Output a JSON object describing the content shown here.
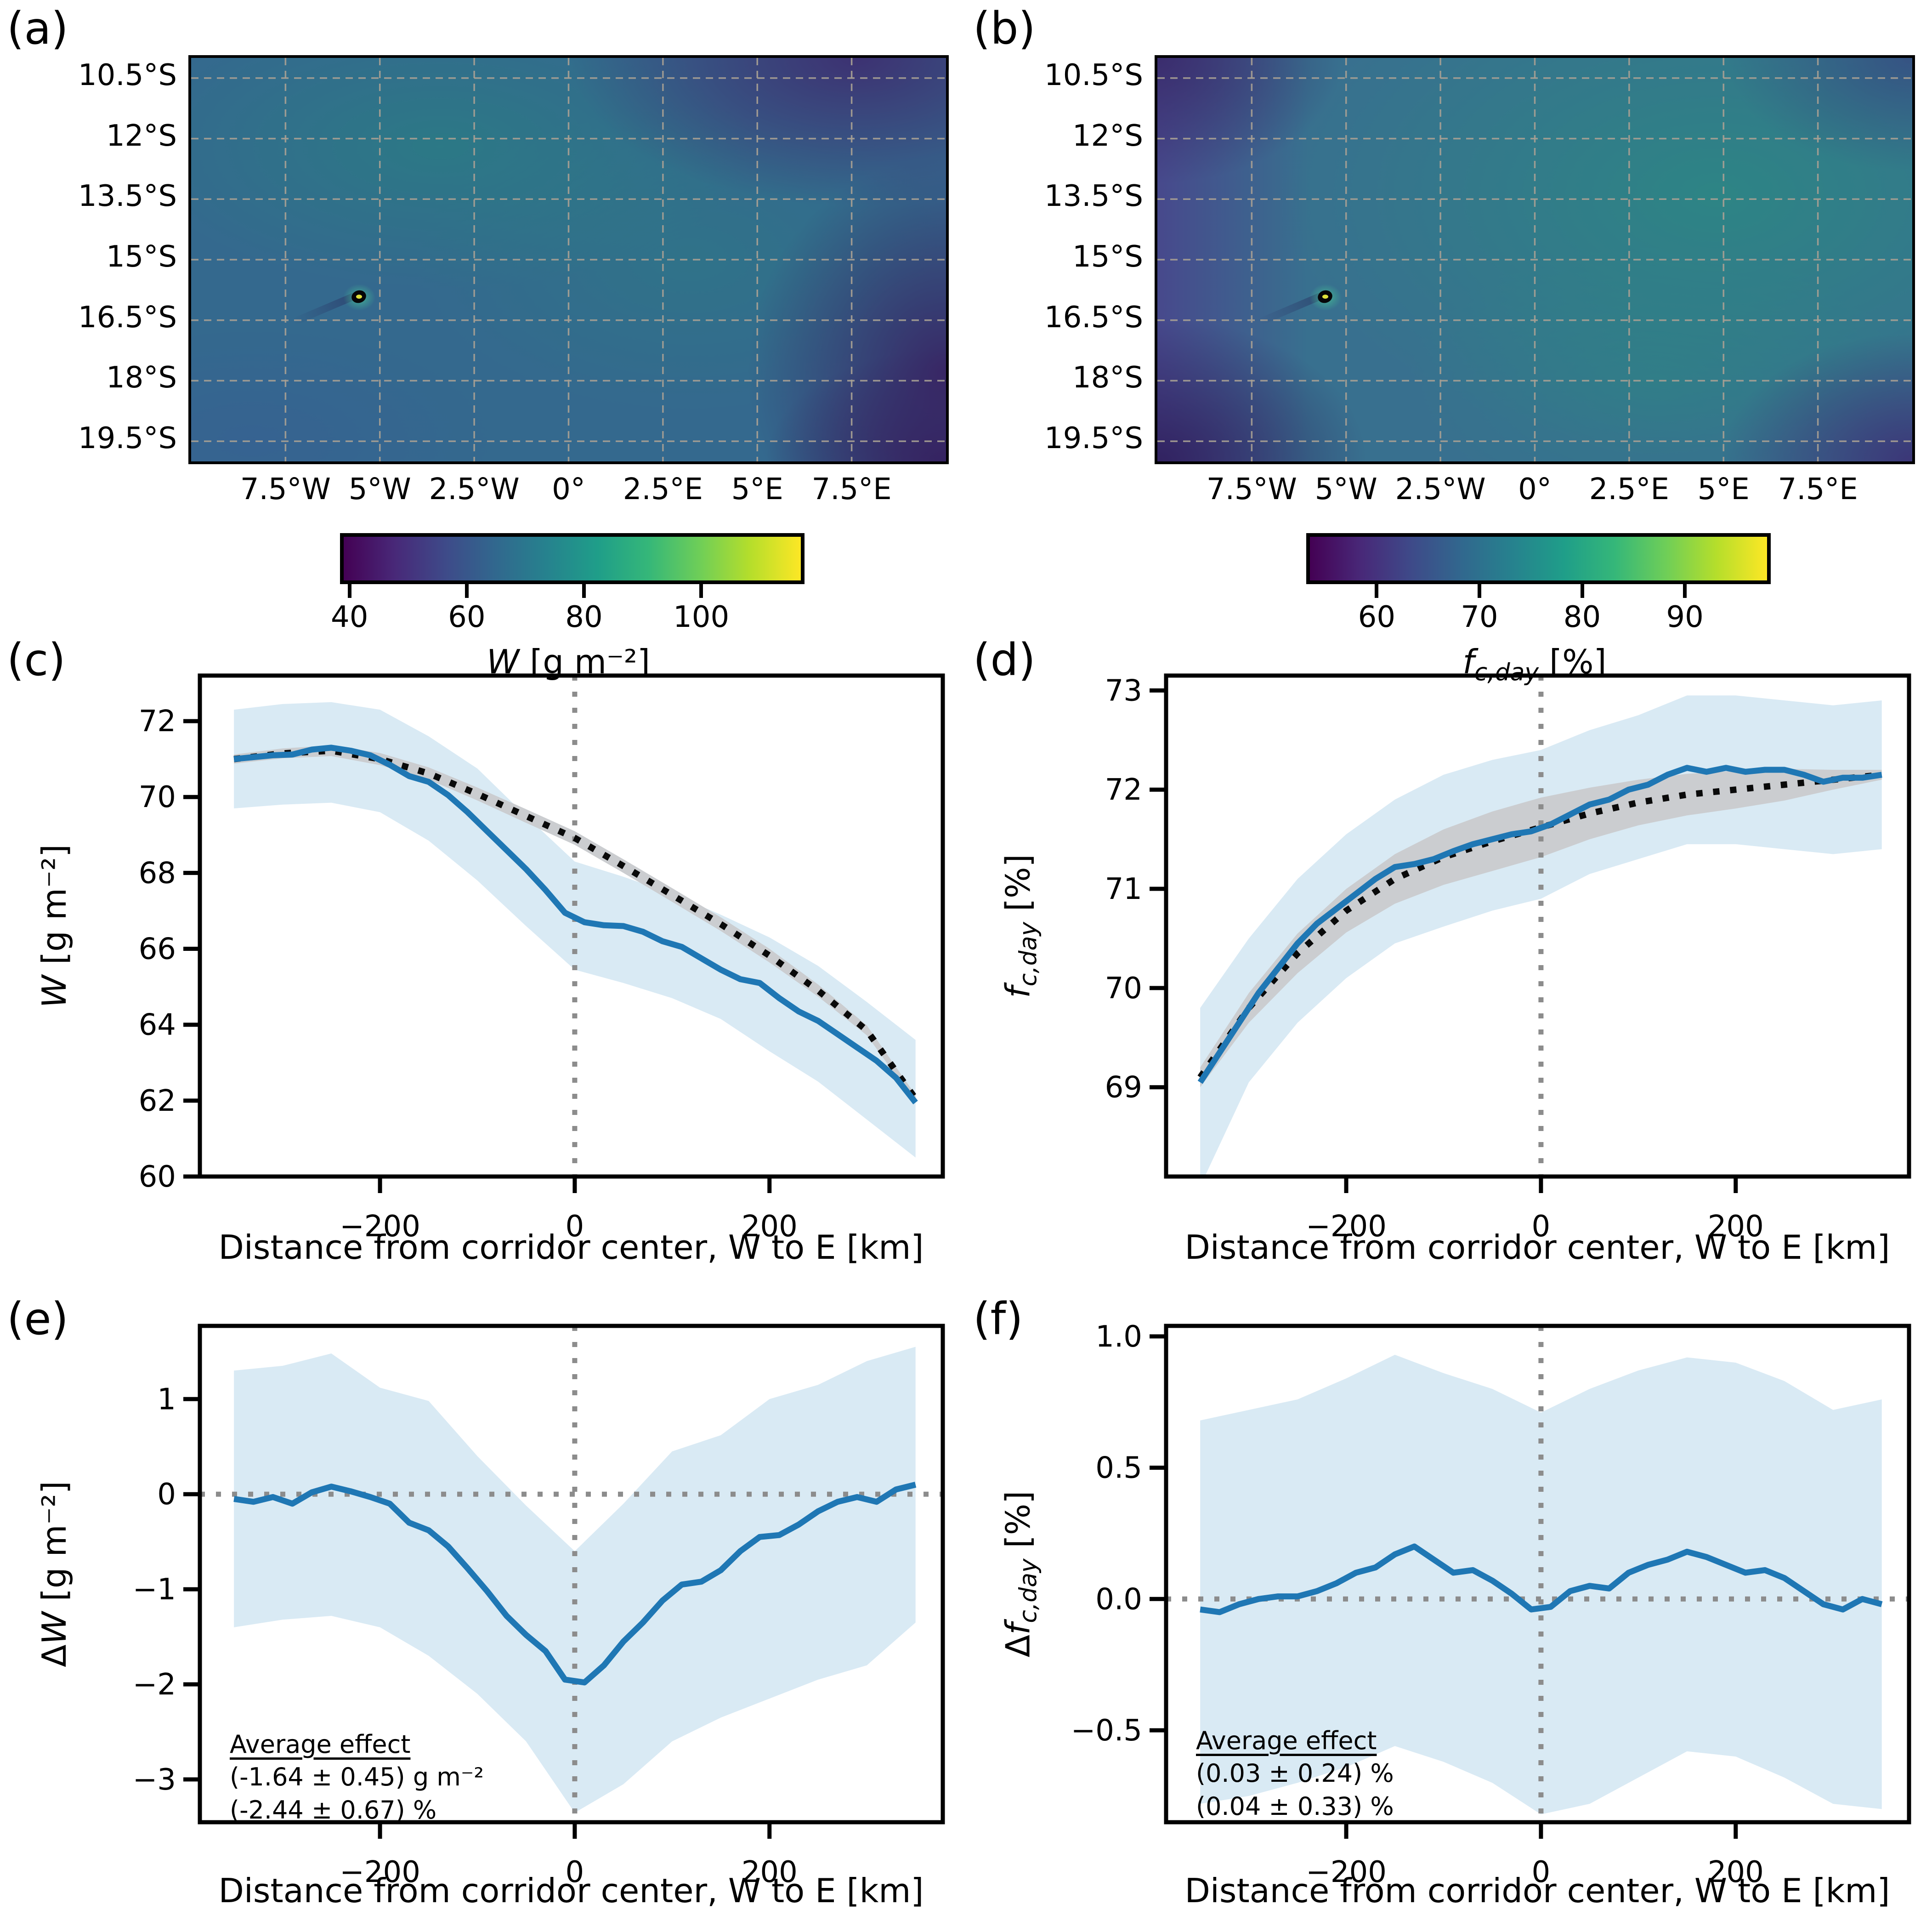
{
  "colors": {
    "blue_line": "#1f77b4",
    "band_blue": "#d9eaf4",
    "band_gray": "#cbcdd0",
    "dotted_line": "#0a0a0a",
    "refline_gray": "#8c8c8c",
    "frame": "#000000",
    "grid_dash": "#a8a094"
  },
  "viridis": [
    "#440154",
    "#482878",
    "#3e4a89",
    "#31688e",
    "#26828e",
    "#1f9e89",
    "#35b779",
    "#6ece58",
    "#b5de2b",
    "#fde725"
  ],
  "shared": {
    "xlabel": "Distance from corridor center, W to E [km]"
  },
  "chart_data": [
    {
      "id": "a",
      "type": "heatmap",
      "panel": "(a)",
      "lat_tick_labels": [
        "10.5°S",
        "12°S",
        "13.5°S",
        "15°S",
        "16.5°S",
        "18°S",
        "19.5°S"
      ],
      "lat_tick_values": [
        10.5,
        12,
        13.5,
        15,
        16.5,
        18,
        19.5
      ],
      "lon_tick_labels": [
        "7.5°W",
        "5°W",
        "2.5°W",
        "0°",
        "2.5°E",
        "5°E",
        "7.5°E"
      ],
      "lon_tick_values": [
        -7.5,
        -5,
        -2.5,
        0,
        2.5,
        5,
        7.5
      ],
      "lon_range": [
        -10,
        10
      ],
      "lat_range": [
        10,
        20
      ],
      "island": {
        "lon": -5.55,
        "lat": 15.93
      },
      "colorbar": {
        "vmin": 39,
        "vmax": 117,
        "ticks": [
          40,
          60,
          80,
          100
        ],
        "label": {
          "pre": "",
          "var": "W",
          "sub": "",
          "post": " [g m⁻²]"
        }
      }
    },
    {
      "id": "b",
      "type": "heatmap",
      "panel": "(b)",
      "lat_tick_labels": [
        "10.5°S",
        "12°S",
        "13.5°S",
        "15°S",
        "16.5°S",
        "18°S",
        "19.5°S"
      ],
      "lat_tick_values": [
        10.5,
        12,
        13.5,
        15,
        16.5,
        18,
        19.5
      ],
      "lon_tick_labels": [
        "7.5°W",
        "5°W",
        "2.5°W",
        "0°",
        "2.5°E",
        "5°E",
        "7.5°E"
      ],
      "lon_tick_values": [
        -7.5,
        -5,
        -2.5,
        0,
        2.5,
        5,
        7.5
      ],
      "lon_range": [
        -10,
        10
      ],
      "lat_range": [
        10,
        20
      ],
      "island": {
        "lon": -5.55,
        "lat": 15.93
      },
      "colorbar": {
        "vmin": 53.5,
        "vmax": 98,
        "ticks": [
          60,
          70,
          80,
          90
        ],
        "label": {
          "pre": "",
          "var": "f",
          "sub": "c,day",
          "post": " [%]"
        }
      }
    },
    {
      "id": "c",
      "type": "line",
      "panel": "(c)",
      "xlabel": "Distance from corridor center, W to E [km]",
      "ylabel": {
        "pre": "",
        "var": "W",
        "sub": "",
        "post": " [g m⁻²]"
      },
      "xlim": [
        -385,
        378
      ],
      "ylim": [
        60,
        73.2
      ],
      "xticks": [
        {
          "v": -200,
          "l": "−200"
        },
        {
          "v": 0,
          "l": "0"
        },
        {
          "v": 200,
          "l": "200"
        }
      ],
      "yticks": [
        {
          "v": 60,
          "l": "60"
        },
        {
          "v": 62,
          "l": "62"
        },
        {
          "v": 64,
          "l": "64"
        },
        {
          "v": 66,
          "l": "66"
        },
        {
          "v": 68,
          "l": "68"
        },
        {
          "v": 70,
          "l": "70"
        },
        {
          "v": 72,
          "l": "72"
        }
      ],
      "vline": 0,
      "hline": null,
      "x": [
        -350,
        -330,
        -310,
        -290,
        -270,
        -250,
        -230,
        -210,
        -190,
        -170,
        -150,
        -130,
        -110,
        -90,
        -70,
        -50,
        -30,
        -10,
        10,
        30,
        50,
        70,
        90,
        110,
        130,
        150,
        170,
        190,
        210,
        230,
        250,
        270,
        290,
        310,
        330,
        350
      ],
      "blue": [
        71.0,
        71.05,
        71.1,
        71.12,
        71.25,
        71.3,
        71.22,
        71.1,
        70.85,
        70.55,
        70.4,
        70.05,
        69.6,
        69.1,
        68.6,
        68.1,
        67.55,
        66.95,
        66.7,
        66.62,
        66.6,
        66.45,
        66.2,
        66.05,
        65.75,
        65.45,
        65.2,
        65.1,
        64.7,
        64.35,
        64.1,
        63.75,
        63.4,
        63.05,
        62.6,
        61.95
      ],
      "bx": [
        -350,
        -300,
        -250,
        -200,
        -150,
        -100,
        -50,
        0,
        50,
        100,
        150,
        200,
        250,
        300,
        350
      ],
      "band_hi": [
        72.3,
        72.45,
        72.5,
        72.3,
        71.6,
        70.75,
        69.5,
        68.3,
        67.9,
        67.45,
        66.9,
        66.3,
        65.55,
        64.6,
        63.6
      ],
      "band_lo": [
        69.7,
        69.8,
        69.85,
        69.6,
        68.85,
        67.8,
        66.6,
        65.45,
        65.1,
        64.7,
        64.15,
        63.3,
        62.5,
        61.5,
        60.5
      ],
      "dotted": [
        71.0,
        71.15,
        71.22,
        71.0,
        70.62,
        70.08,
        69.5,
        68.92,
        68.18,
        67.42,
        66.65,
        65.82,
        64.9,
        63.85,
        62.05
      ],
      "gray_hi": [
        71.12,
        71.28,
        71.36,
        71.16,
        70.78,
        70.25,
        69.68,
        69.1,
        68.36,
        67.6,
        66.83,
        66.0,
        65.06,
        63.98,
        62.15
      ],
      "gray_lo": [
        70.88,
        71.02,
        71.08,
        70.84,
        70.46,
        69.91,
        69.32,
        68.74,
        68.0,
        67.24,
        66.47,
        65.64,
        64.74,
        63.72,
        61.95
      ],
      "annotation": null
    },
    {
      "id": "d",
      "type": "line",
      "panel": "(d)",
      "xlabel": "Distance from corridor center, W to E [km]",
      "ylabel": {
        "pre": "",
        "var": "f",
        "sub": "c,day",
        "post": " [%]"
      },
      "xlim": [
        -385,
        378
      ],
      "ylim": [
        68.1,
        73.15
      ],
      "xticks": [
        {
          "v": -200,
          "l": "−200"
        },
        {
          "v": 0,
          "l": "0"
        },
        {
          "v": 200,
          "l": "200"
        }
      ],
      "yticks": [
        {
          "v": 69,
          "l": "69"
        },
        {
          "v": 70,
          "l": "70"
        },
        {
          "v": 71,
          "l": "71"
        },
        {
          "v": 72,
          "l": "72"
        },
        {
          "v": 73,
          "l": "73"
        }
      ],
      "vline": 0,
      "hline": null,
      "x": [
        -350,
        -330,
        -310,
        -290,
        -270,
        -250,
        -230,
        -210,
        -190,
        -170,
        -150,
        -130,
        -110,
        -90,
        -70,
        -50,
        -30,
        -10,
        10,
        30,
        50,
        70,
        90,
        110,
        130,
        150,
        170,
        190,
        210,
        230,
        250,
        270,
        290,
        310,
        330,
        350
      ],
      "blue": [
        69.05,
        69.35,
        69.65,
        69.95,
        70.2,
        70.45,
        70.65,
        70.8,
        70.95,
        71.1,
        71.22,
        71.25,
        71.3,
        71.38,
        71.45,
        71.5,
        71.55,
        71.58,
        71.65,
        71.75,
        71.85,
        71.9,
        72.0,
        72.05,
        72.15,
        72.22,
        72.18,
        72.22,
        72.18,
        72.2,
        72.2,
        72.15,
        72.08,
        72.12,
        72.12,
        72.15
      ],
      "bx": [
        -350,
        -300,
        -250,
        -200,
        -150,
        -100,
        -50,
        0,
        50,
        100,
        150,
        200,
        250,
        300,
        350
      ],
      "band_hi": [
        69.8,
        70.5,
        71.1,
        71.55,
        71.9,
        72.15,
        72.3,
        72.4,
        72.6,
        72.75,
        72.95,
        72.95,
        72.9,
        72.85,
        72.9
      ],
      "band_lo": [
        68.0,
        69.05,
        69.65,
        70.1,
        70.45,
        70.62,
        70.78,
        70.9,
        71.15,
        71.3,
        71.45,
        71.45,
        71.4,
        71.35,
        71.4
      ],
      "dotted": [
        69.1,
        69.8,
        70.35,
        70.78,
        71.1,
        71.32,
        71.48,
        71.62,
        71.76,
        71.87,
        71.95,
        72.0,
        72.05,
        72.1,
        72.15
      ],
      "gray_hi": [
        69.2,
        69.95,
        70.55,
        71.0,
        71.35,
        71.6,
        71.78,
        71.92,
        72.02,
        72.1,
        72.16,
        72.19,
        72.21,
        72.2,
        72.2
      ],
      "gray_lo": [
        69.0,
        69.65,
        70.15,
        70.56,
        70.85,
        71.04,
        71.18,
        71.32,
        71.5,
        71.64,
        71.74,
        71.81,
        71.89,
        72.0,
        72.1
      ],
      "annotation": null
    },
    {
      "id": "e",
      "type": "line",
      "panel": "(e)",
      "xlabel": "Distance from corridor center, W to E [km]",
      "ylabel": {
        "pre": "Δ",
        "var": "W",
        "sub": "",
        "post": " [g m⁻²]"
      },
      "xlim": [
        -385,
        378
      ],
      "ylim": [
        -3.45,
        1.77
      ],
      "xticks": [
        {
          "v": -200,
          "l": "−200"
        },
        {
          "v": 0,
          "l": "0"
        },
        {
          "v": 200,
          "l": "200"
        }
      ],
      "yticks": [
        {
          "v": -3,
          "l": "−3"
        },
        {
          "v": -2,
          "l": "−2"
        },
        {
          "v": -1,
          "l": "−1"
        },
        {
          "v": 0,
          "l": "0"
        },
        {
          "v": 1,
          "l": "1"
        }
      ],
      "vline": 0,
      "hline": 0,
      "x": [
        -350,
        -330,
        -310,
        -290,
        -270,
        -250,
        -230,
        -210,
        -190,
        -170,
        -150,
        -130,
        -110,
        -90,
        -70,
        -50,
        -30,
        -10,
        10,
        30,
        50,
        70,
        90,
        110,
        130,
        150,
        170,
        190,
        210,
        230,
        250,
        270,
        290,
        310,
        330,
        350
      ],
      "blue": [
        -0.05,
        -0.08,
        -0.03,
        -0.1,
        0.02,
        0.08,
        0.03,
        -0.03,
        -0.1,
        -0.3,
        -0.38,
        -0.55,
        -0.78,
        -1.02,
        -1.28,
        -1.48,
        -1.65,
        -1.95,
        -1.98,
        -1.8,
        -1.55,
        -1.35,
        -1.12,
        -0.95,
        -0.92,
        -0.8,
        -0.6,
        -0.45,
        -0.43,
        -0.32,
        -0.18,
        -0.08,
        -0.03,
        -0.08,
        0.05,
        0.1
      ],
      "bx": [
        -350,
        -300,
        -250,
        -200,
        -150,
        -100,
        -50,
        0,
        50,
        100,
        150,
        200,
        250,
        300,
        350
      ],
      "band_hi": [
        1.3,
        1.35,
        1.48,
        1.12,
        0.98,
        0.4,
        -0.12,
        -0.6,
        -0.1,
        0.45,
        0.62,
        1.0,
        1.15,
        1.4,
        1.55
      ],
      "band_lo": [
        -1.4,
        -1.32,
        -1.28,
        -1.4,
        -1.7,
        -2.1,
        -2.6,
        -3.35,
        -3.05,
        -2.6,
        -2.35,
        -2.15,
        -1.95,
        -1.8,
        -1.35
      ],
      "dotted": null,
      "gray_hi": null,
      "gray_lo": null,
      "annotation": {
        "title": "Average effect",
        "lines": [
          "(-1.64 ± 0.45) g m⁻²",
          "(-2.44 ± 0.67) %"
        ]
      }
    },
    {
      "id": "f",
      "type": "line",
      "panel": "(f)",
      "xlabel": "Distance from corridor center, W to E [km]",
      "ylabel": {
        "pre": "Δ",
        "var": "f",
        "sub": "c,day",
        "post": " [%]"
      },
      "xlim": [
        -385,
        378
      ],
      "ylim": [
        -0.85,
        1.04
      ],
      "xticks": [
        {
          "v": -200,
          "l": "−200"
        },
        {
          "v": 0,
          "l": "0"
        },
        {
          "v": 200,
          "l": "200"
        }
      ],
      "yticks": [
        {
          "v": -0.5,
          "l": "−0.5"
        },
        {
          "v": 0,
          "l": "0.0"
        },
        {
          "v": 0.5,
          "l": "0.5"
        },
        {
          "v": 1,
          "l": "1.0"
        }
      ],
      "vline": 0,
      "hline": 0,
      "x": [
        -350,
        -330,
        -310,
        -290,
        -270,
        -250,
        -230,
        -210,
        -190,
        -170,
        -150,
        -130,
        -110,
        -90,
        -70,
        -50,
        -30,
        -10,
        10,
        30,
        50,
        70,
        90,
        110,
        130,
        150,
        170,
        190,
        210,
        230,
        250,
        270,
        290,
        310,
        330,
        350
      ],
      "blue": [
        -0.04,
        -0.05,
        -0.02,
        0.0,
        0.01,
        0.01,
        0.03,
        0.06,
        0.1,
        0.12,
        0.17,
        0.2,
        0.15,
        0.1,
        0.11,
        0.07,
        0.02,
        -0.04,
        -0.03,
        0.03,
        0.05,
        0.04,
        0.1,
        0.13,
        0.15,
        0.18,
        0.16,
        0.13,
        0.1,
        0.11,
        0.08,
        0.03,
        -0.02,
        -0.04,
        0.0,
        -0.02
      ],
      "bx": [
        -350,
        -300,
        -250,
        -200,
        -150,
        -100,
        -50,
        0,
        50,
        100,
        150,
        200,
        250,
        300,
        350
      ],
      "band_hi": [
        0.68,
        0.72,
        0.76,
        0.84,
        0.93,
        0.86,
        0.8,
        0.71,
        0.8,
        0.87,
        0.92,
        0.9,
        0.83,
        0.72,
        0.76
      ],
      "band_lo": [
        -0.78,
        -0.75,
        -0.7,
        -0.64,
        -0.56,
        -0.62,
        -0.7,
        -0.82,
        -0.78,
        -0.68,
        -0.58,
        -0.6,
        -0.68,
        -0.78,
        -0.8
      ],
      "dotted": null,
      "gray_hi": null,
      "gray_lo": null,
      "annotation": {
        "title": "Average effect",
        "lines": [
          "(0.03 ± 0.24) %",
          "(0.04 ± 0.33) %"
        ]
      }
    }
  ]
}
